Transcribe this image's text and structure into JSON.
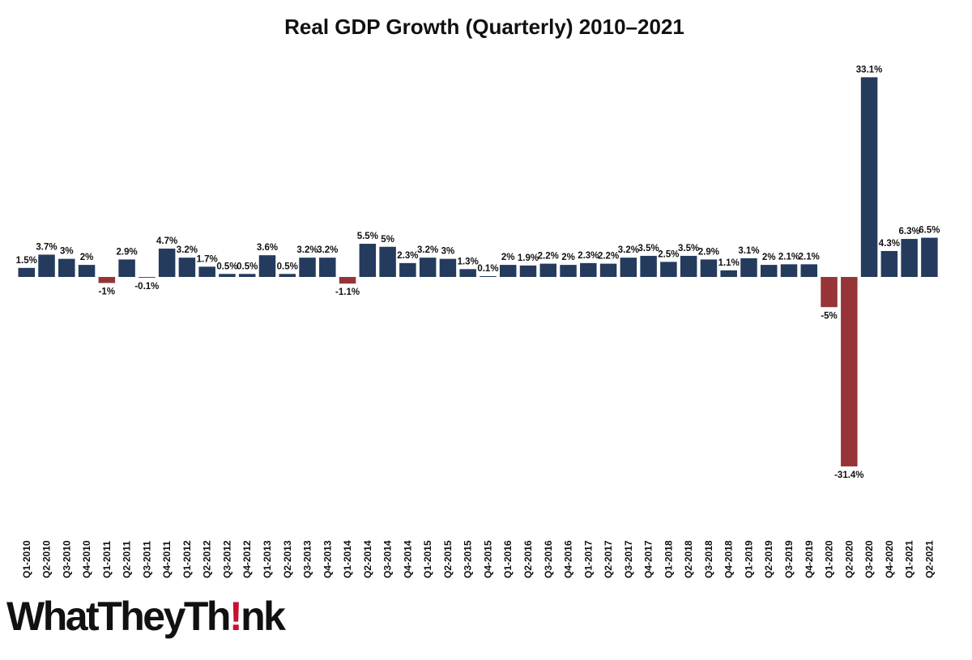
{
  "chart_data": {
    "type": "bar",
    "title": "Real GDP Growth (Quarterly) 2010–2021",
    "xlabel": "",
    "ylabel": "",
    "ylim": [
      -34,
      36
    ],
    "grid": false,
    "legend": "none",
    "colors": {
      "positive": "#243b5e",
      "negative": "#963437",
      "text": "#111111"
    },
    "categories": [
      "Q1-2010",
      "Q2-2010",
      "Q3-2010",
      "Q4-2010",
      "Q1-2011",
      "Q2-2011",
      "Q3-2011",
      "Q4-2011",
      "Q1-2012",
      "Q2-2012",
      "Q3-2012",
      "Q4-2012",
      "Q1-2013",
      "Q2-2013",
      "Q3-2013",
      "Q4-2013",
      "Q1-2014",
      "Q2-2014",
      "Q3-2014",
      "Q4-2014",
      "Q1-2015",
      "Q2-2015",
      "Q3-2015",
      "Q4-2015",
      "Q1-2016",
      "Q2-2016",
      "Q3-2016",
      "Q4-2016",
      "Q1-2017",
      "Q2-2017",
      "Q3-2017",
      "Q4-2017",
      "Q1-2018",
      "Q2-2018",
      "Q3-2018",
      "Q4-2018",
      "Q1-2019",
      "Q2-2019",
      "Q3-2019",
      "Q4-2019",
      "Q1-2020",
      "Q2-2020",
      "Q3-2020",
      "Q4-2020",
      "Q1-2021",
      "Q2-2021"
    ],
    "values": [
      1.5,
      3.7,
      3,
      2,
      -1,
      2.9,
      -0.1,
      4.7,
      3.2,
      1.7,
      0.5,
      0.5,
      3.6,
      0.5,
      3.2,
      3.2,
      -1.1,
      5.5,
      5,
      2.3,
      3.2,
      3,
      1.3,
      0.1,
      2,
      1.9,
      2.2,
      2,
      2.3,
      2.2,
      3.2,
      3.5,
      2.5,
      3.5,
      2.9,
      1.1,
      3.1,
      2,
      2.1,
      2.1,
      -5,
      -31.4,
      33.1,
      4.3,
      6.3,
      6.5
    ],
    "data_labels": [
      "1.5%",
      "3.7%",
      "3%",
      "2%",
      "-1%",
      "2.9%",
      "-0.1%",
      "4.7%",
      "3.2%",
      "1.7%",
      "0.5%",
      "0.5%",
      "3.6%",
      "0.5%",
      "3.2%",
      "3.2%",
      "-1.1%",
      "5.5%",
      "5%",
      "2.3%",
      "3.2%",
      "3%",
      "1.3%",
      "0.1%",
      "2%",
      "1.9%",
      "2.2%",
      "2%",
      "2.3%",
      "2.2%",
      "3.2%",
      "3.5%",
      "2.5%",
      "3.5%",
      "2.9%",
      "1.1%",
      "3.1%",
      "2%",
      "2.1%",
      "2.1%",
      "-5%",
      "-31.4%",
      "33.1%",
      "4.3%",
      "6.3%",
      "6.5%"
    ]
  },
  "logo": {
    "part1": "WhatTheyTh",
    "part2": "!",
    "part3": "nk"
  }
}
